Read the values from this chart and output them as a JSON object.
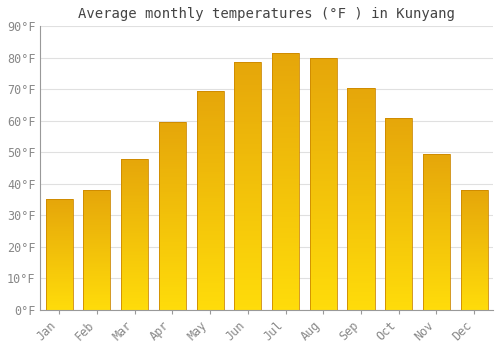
{
  "title": "Average monthly temperatures (°F ) in Kunyang",
  "months": [
    "Jan",
    "Feb",
    "Mar",
    "Apr",
    "May",
    "Jun",
    "Jul",
    "Aug",
    "Sep",
    "Oct",
    "Nov",
    "Dec"
  ],
  "values": [
    35,
    38,
    48,
    59.5,
    69.5,
    78.5,
    81.5,
    80,
    70.5,
    61,
    49.5,
    38
  ],
  "bar_color_top": "#FFA500",
  "bar_color_bottom": "#FFD700",
  "bar_edge_color": "#CC8800",
  "background_color": "#FFFFFF",
  "grid_color": "#E0E0E0",
  "ylim": [
    0,
    90
  ],
  "yticks": [
    0,
    10,
    20,
    30,
    40,
    50,
    60,
    70,
    80,
    90
  ],
  "title_fontsize": 10,
  "tick_fontsize": 8.5,
  "tick_color": "#888888",
  "title_color": "#444444"
}
